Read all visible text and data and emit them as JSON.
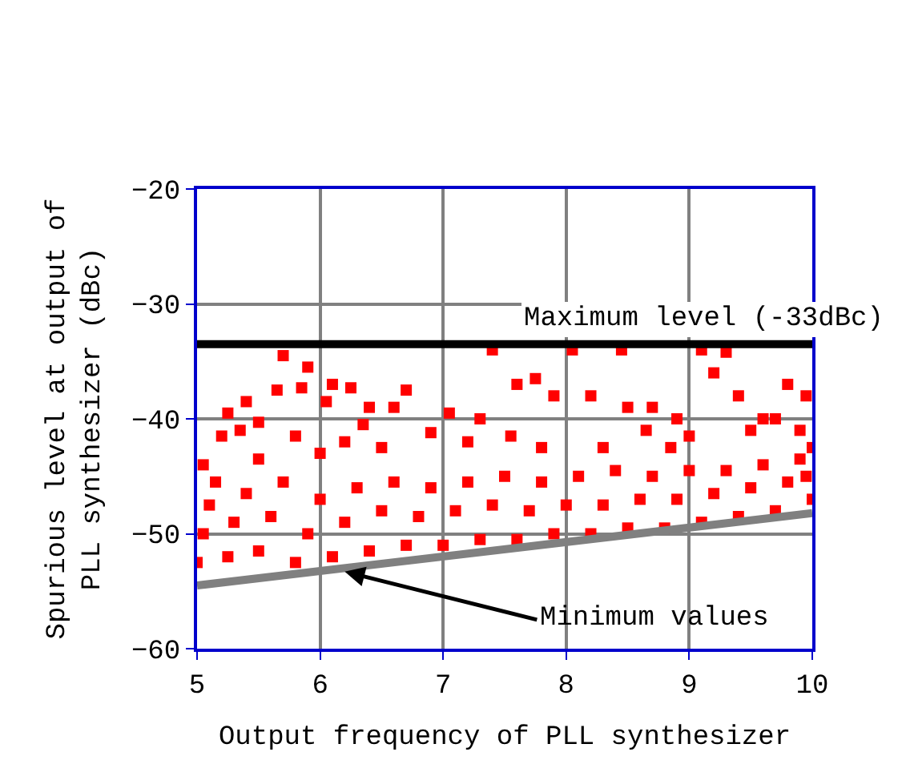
{
  "chart_data": {
    "type": "scatter",
    "xlabel": "Output frequency of PLL synthesizer",
    "ylabel": "Spurious level at output of\nPLL synthesizer (dBc)",
    "xlim": [
      5,
      10
    ],
    "ylim": [
      -60,
      -20
    ],
    "xticks": [
      5,
      6,
      7,
      8,
      9,
      10
    ],
    "yticks": [
      -60,
      -50,
      -40,
      -30,
      -20
    ],
    "grid": true,
    "marker": "square",
    "series": [
      {
        "color": "#ff0000",
        "x": [
          5.7,
          5.9,
          6.1,
          6.25,
          5.4,
          5.65,
          5.85,
          6.4,
          6.05,
          5.25,
          5.5,
          5.2,
          5.35,
          5.8,
          6.2,
          6.6,
          6.7,
          7.05,
          7.3,
          7.6,
          7.75,
          7.9,
          8.2,
          8.5,
          8.7,
          8.9,
          9.1,
          9.2,
          9.4,
          9.6,
          9.8,
          9.95,
          7.4,
          8.05,
          8.45,
          9.3,
          9.7,
          5.05,
          5.5,
          6.0,
          6.5,
          7.2,
          7.8,
          8.3,
          9.0,
          9.5,
          9.9,
          8.85,
          7.55,
          6.9,
          6.35,
          8.65,
          5.15,
          5.0,
          5.05,
          5.1,
          5.25,
          5.3,
          5.4,
          5.5,
          5.6,
          5.7,
          5.8,
          5.9,
          6.0,
          6.1,
          6.2,
          6.3,
          6.4,
          6.5,
          6.6,
          6.7,
          6.8,
          6.9,
          7.0,
          7.1,
          7.2,
          7.3,
          7.4,
          7.5,
          7.6,
          7.7,
          7.8,
          7.9,
          8.0,
          8.1,
          8.2,
          8.3,
          8.4,
          8.5,
          8.6,
          8.7,
          8.8,
          8.9,
          9.0,
          9.1,
          9.2,
          9.3,
          9.4,
          9.5,
          9.6,
          9.7,
          9.8,
          9.9,
          10.0,
          10.0,
          9.95
        ],
        "values": [
          -34.5,
          -35.5,
          -37,
          -37.3,
          -38.5,
          -37.5,
          -37.3,
          -39,
          -38.5,
          -39.5,
          -40.3,
          -41.5,
          -41,
          -41.5,
          -42,
          -39,
          -37.5,
          -39.5,
          -40,
          -37,
          -36.5,
          -38,
          -38,
          -39,
          -39,
          -40,
          -34,
          -36,
          -38,
          -40,
          -37,
          -38,
          -34,
          -34,
          -34,
          -34.2,
          -40,
          -44,
          -43.5,
          -43,
          -42.5,
          -42,
          -42.5,
          -42.5,
          -41.5,
          -41,
          -41,
          -42.5,
          -41.5,
          -41.2,
          -40.5,
          -41,
          -45.5,
          -52.5,
          -50,
          -47.5,
          -52,
          -49,
          -46.5,
          -51.5,
          -48.5,
          -45.5,
          -52.5,
          -50,
          -47,
          -52,
          -49,
          -46,
          -51.5,
          -48,
          -45.5,
          -51,
          -48.5,
          -46,
          -51,
          -48,
          -45.5,
          -50.5,
          -47.5,
          -45,
          -50.5,
          -48,
          -45.5,
          -50,
          -47.5,
          -45,
          -50,
          -47.5,
          -44.5,
          -49.5,
          -47,
          -45,
          -49.5,
          -47,
          -44.5,
          -49,
          -46.5,
          -44.5,
          -48.5,
          -46,
          -44,
          -48,
          -45.5,
          -43.5,
          -47,
          -42.5,
          -45
        ]
      },
      {
        "type": "line",
        "color": "#808080",
        "marker": "none",
        "x": [
          5,
          10
        ],
        "values": [
          -54.5,
          -48.2
        ]
      }
    ],
    "ref_lines": [
      {
        "axis": "y",
        "value": -33.5,
        "label": "Maximum level (-33dBc)",
        "color": "#000000"
      }
    ],
    "annotations": [
      {
        "text": "Minimum values",
        "x": 6.2,
        "y": -53.3
      }
    ]
  }
}
